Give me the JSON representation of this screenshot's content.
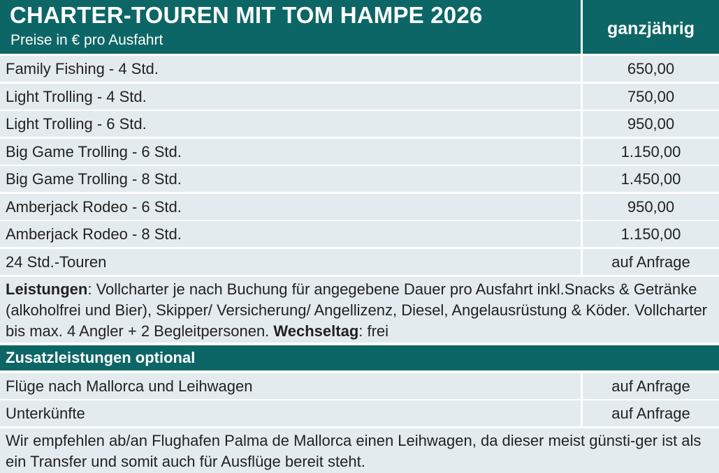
{
  "header": {
    "title": "CHARTER-TOUREN MIT TOM HAMPE 2026",
    "subtitle": "Preise in € pro Ausfahrt",
    "column_label": "ganzjährig"
  },
  "price_rows": [
    {
      "label": "Family Fishing -  4 Std.",
      "price": "650,00"
    },
    {
      "label": "Light Trolling - 4 Std.",
      "price": "750,00"
    },
    {
      "label": "Light Trolling - 6 Std.",
      "price": "950,00"
    },
    {
      "label": "Big Game Trolling - 6 Std.",
      "price": "1.150,00"
    },
    {
      "label": "Big Game Trolling - 8 Std.",
      "price": "1.450,00"
    },
    {
      "label": "Amberjack Rodeo - 6 Std.",
      "price": "950,00"
    },
    {
      "label": "Amberjack Rodeo - 8 Std.",
      "price": "1.150,00"
    },
    {
      "label": "24 Std.-Touren",
      "price": "auf Anfrage"
    }
  ],
  "services": {
    "label": "Leistungen",
    "text": ": Vollcharter je nach Buchung für angegebene Dauer pro Ausfahrt inkl.Snacks & Getränke (alkoholfrei und Bier), Skipper/ Versicherung/ Angellizenz, Diesel, Angelausrüstung & Köder. Vollcharter bis max. 4 Angler + 2 Begleitpersonen. ",
    "changeover_label": "Wechseltag",
    "changeover_value": ": frei"
  },
  "extras": {
    "title": "Zusatzleistungen optional",
    "rows": [
      {
        "label": "Flüge nach Mallorca und Leihwagen",
        "price": "auf Anfrage"
      },
      {
        "label": "Unterkünfte",
        "price": "auf Anfrage"
      }
    ]
  },
  "note": "Wir empfehlen ab/an Flughafen Palma de Mallorca einen Leihwagen, da dieser meist günsti-ger ist als ein Transfer und somit auch für Ausflüge bereit steht."
}
